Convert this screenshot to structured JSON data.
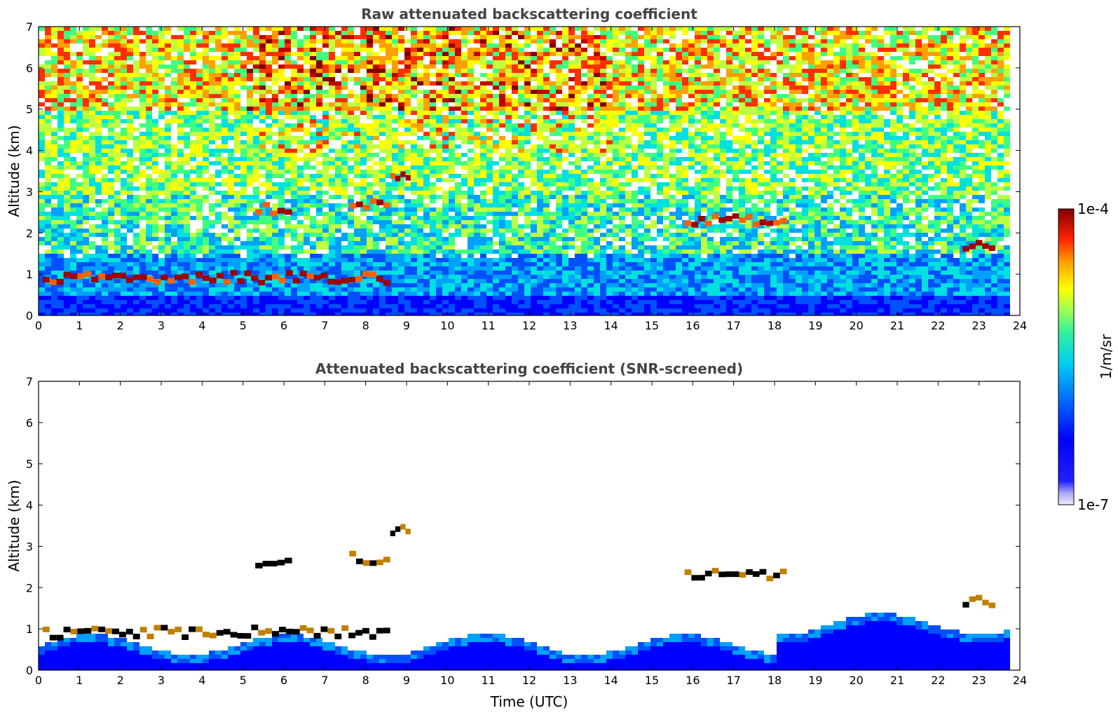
{
  "chart_data": [
    {
      "type": "heatmap",
      "title": "Raw attenuated backscattering coefficient",
      "xlabel": "",
      "ylabel": "Altitude (km)",
      "xlim": [
        0,
        24
      ],
      "ylim": [
        0,
        7
      ],
      "xticks": [
        "0",
        "1",
        "2",
        "3",
        "4",
        "5",
        "6",
        "7",
        "8",
        "9",
        "10",
        "11",
        "12",
        "13",
        "14",
        "15",
        "16",
        "17",
        "18",
        "19",
        "20",
        "21",
        "22",
        "23",
        "24"
      ],
      "yticks": [
        "0",
        "1",
        "2",
        "3",
        "4",
        "5",
        "6",
        "7"
      ],
      "data_end_hour": 23.8,
      "description_layers": [
        {
          "kind": "surface_blue",
          "alt_top_km": 0.6
        },
        {
          "kind": "aerosol_layer",
          "x_start": 0.1,
          "x_end": 8.6,
          "alt_km": 0.9
        },
        {
          "kind": "cloud",
          "x_start": 7.6,
          "x_end": 8.6,
          "alt_km": 2.7
        },
        {
          "kind": "cloud",
          "x_start": 8.6,
          "x_end": 9.1,
          "alt_km": 3.4
        },
        {
          "kind": "cloud",
          "x_start": 5.3,
          "x_end": 6.2,
          "alt_km": 2.55
        },
        {
          "kind": "cloud",
          "x_start": 15.8,
          "x_end": 18.3,
          "alt_km": 2.3
        },
        {
          "kind": "cloud",
          "x_start": 22.6,
          "x_end": 23.4,
          "alt_km": 1.65
        }
      ],
      "colorbar": {
        "label": "1/m/sr",
        "min_label": "1e-7",
        "max_label": "1e-4",
        "scale": "log"
      }
    },
    {
      "type": "heatmap",
      "title": "Attenuated backscattering coefficient (SNR-screened)",
      "xlabel": "Time (UTC)",
      "ylabel": "Altitude (km)",
      "xlim": [
        0,
        24
      ],
      "ylim": [
        0,
        7
      ],
      "xticks": [
        "0",
        "1",
        "2",
        "3",
        "4",
        "5",
        "6",
        "7",
        "8",
        "9",
        "10",
        "11",
        "12",
        "13",
        "14",
        "15",
        "16",
        "17",
        "18",
        "19",
        "20",
        "21",
        "22",
        "23",
        "24"
      ],
      "yticks": [
        "0",
        "1",
        "2",
        "3",
        "4",
        "5",
        "6",
        "7"
      ],
      "data_end_hour": 23.8,
      "colorbar": {
        "label": "1/m/sr",
        "min_label": "1e-7",
        "max_label": "1e-4",
        "scale": "log"
      }
    }
  ],
  "colors": {
    "title": "#444444",
    "axes": "#000000",
    "colormap": [
      "#e8e8f8",
      "#9a9ae8",
      "#0000ff",
      "#0050ff",
      "#00a0ff",
      "#00e0e0",
      "#40ff80",
      "#c0ff40",
      "#ffff00",
      "#ffa000",
      "#ff3000",
      "#c00000",
      "#800000"
    ]
  }
}
